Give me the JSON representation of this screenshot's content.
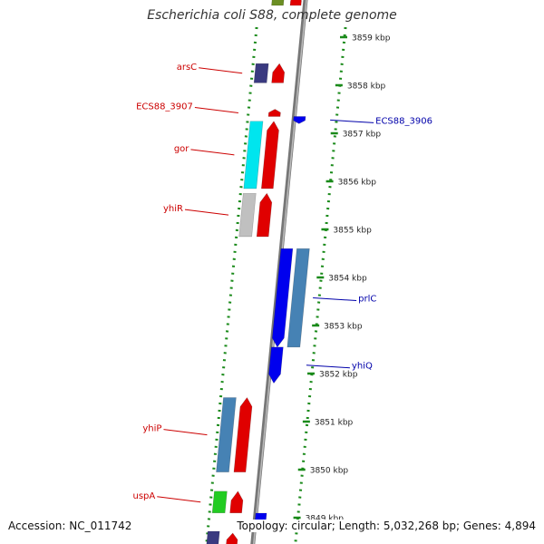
{
  "header": {
    "title": "Escherichia coli S88, complete genome"
  },
  "footer": {
    "accession": "Accession: NC_011742",
    "summary": "Topology: circular; Length: 5,032,268 bp; Genes: 4,894"
  },
  "colors": {
    "backbone": "#888888",
    "ruler": "#1a8a1a",
    "label_forward": "#cc0000",
    "label_reverse": "#0000aa"
  },
  "scale": {
    "unit": "kbp",
    "ticks": [
      3859,
      3858,
      3857,
      3856,
      3855,
      3854,
      3853,
      3852,
      3851,
      3850,
      3849
    ],
    "tick_labels": [
      "3859 kbp",
      "3858 kbp",
      "3857 kbp",
      "3856 kbp",
      "3855 kbp",
      "3854 kbp",
      "3853 kbp",
      "3852 kbp",
      "3851 kbp",
      "3850 kbp",
      "3849 kbp"
    ]
  },
  "genes": [
    {
      "name": "arsC",
      "strand": "+",
      "start_kbp": 3858.05,
      "end_kbp": 3858.45,
      "cds_color": "#e00000",
      "feature_color": "#3a3a80"
    },
    {
      "name": "ECS88_3907",
      "strand": "+",
      "start_kbp": 3857.35,
      "end_kbp": 3857.5,
      "cds_color": "#e00000",
      "feature_color": null
    },
    {
      "name": "ECS88_3906",
      "strand": "-",
      "start_kbp": 3857.2,
      "end_kbp": 3857.35,
      "cds_color": "#0000ee",
      "feature_color": null
    },
    {
      "name": "gor",
      "strand": "+",
      "start_kbp": 3855.85,
      "end_kbp": 3857.25,
      "cds_color": "#e00000",
      "feature_color": "#00e5ee"
    },
    {
      "name": "yhiR",
      "strand": "+",
      "start_kbp": 3854.85,
      "end_kbp": 3855.75,
      "cds_color": "#e00000",
      "feature_color": "#c0c0c0"
    },
    {
      "name": "prlC",
      "strand": "-",
      "start_kbp": 3852.55,
      "end_kbp": 3854.6,
      "cds_color": "#0000ee",
      "feature_color": "#4682b4"
    },
    {
      "name": "yhiQ",
      "strand": "-",
      "start_kbp": 3851.8,
      "end_kbp": 3852.55,
      "cds_color": "#0000ee",
      "feature_color": null
    },
    {
      "name": "yhiP",
      "strand": "+",
      "start_kbp": 3849.95,
      "end_kbp": 3851.5,
      "cds_color": "#e00000",
      "feature_color": "#4682b4"
    },
    {
      "name": "uspA",
      "strand": "+",
      "start_kbp": 3849.1,
      "end_kbp": 3849.55,
      "cds_color": "#e00000",
      "feature_color": "#22cc22"
    }
  ]
}
